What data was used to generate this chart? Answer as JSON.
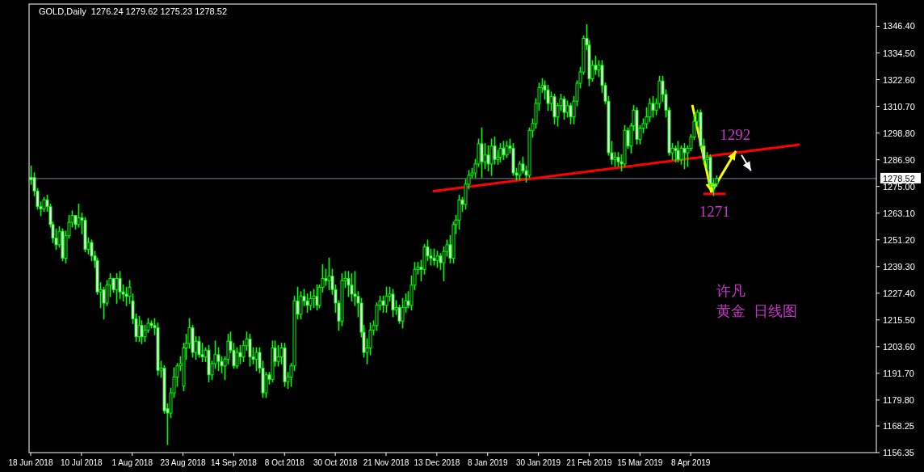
{
  "chart_data": {
    "type": "candlestick",
    "title": "GOLD,Daily  1276.24 1279.62 1275.23 1278.52",
    "categories": [
      "18 Jun 2018",
      null,
      null,
      null,
      null,
      null,
      null,
      null,
      null,
      null,
      null,
      null,
      null,
      null,
      null,
      null,
      "10 Jul 2018",
      null,
      null,
      null,
      null,
      null,
      null,
      null,
      null,
      null,
      null,
      null,
      null,
      null,
      null,
      null,
      "1 Aug 2018",
      null,
      null,
      null,
      null,
      null,
      null,
      null,
      null,
      null,
      null,
      null,
      null,
      null,
      null,
      null,
      "23 Aug 2018",
      null,
      null,
      null,
      null,
      null,
      null,
      null,
      null,
      null,
      null,
      null,
      null,
      null,
      null,
      null,
      "14 Sep 2018",
      null,
      null,
      null,
      null,
      null,
      null,
      null,
      null,
      null,
      null,
      null,
      null,
      null,
      null,
      null,
      "8 Oct 2018",
      null,
      null,
      null,
      null,
      null,
      null,
      null,
      null,
      null,
      null,
      null,
      null,
      null,
      null,
      null,
      "30 Oct 2018",
      null,
      null,
      null,
      null,
      null,
      null,
      null,
      null,
      null,
      null,
      null,
      null,
      null,
      null,
      null,
      "21 Nov 2018",
      null,
      null,
      null,
      null,
      null,
      null,
      null,
      null,
      null,
      null,
      null,
      null,
      null,
      null,
      null,
      "13 Dec 2018",
      null,
      null,
      null,
      null,
      null,
      null,
      null,
      null,
      null,
      null,
      null,
      null,
      null,
      null,
      null,
      "8 Jan 2019",
      null,
      null,
      null,
      null,
      null,
      null,
      null,
      null,
      null,
      null,
      null,
      null,
      null,
      null,
      null,
      "30 Jan 2019",
      null,
      null,
      null,
      null,
      null,
      null,
      null,
      null,
      null,
      null,
      null,
      null,
      null,
      null,
      null,
      "21 Feb 2019",
      null,
      null,
      null,
      null,
      null,
      null,
      null,
      null,
      null,
      null,
      null,
      null,
      null,
      null,
      null,
      "15 Mar 2019",
      null,
      null,
      null,
      null,
      null,
      null,
      null,
      null,
      null,
      null,
      null,
      null,
      null,
      null,
      null,
      "8 Apr 2019",
      null,
      null,
      null,
      null,
      null,
      null,
      null,
      null,
      null,
      null,
      null,
      null,
      null,
      null,
      null,
      null,
      null,
      null,
      null,
      null,
      null,
      null,
      null,
      null,
      null,
      null,
      null,
      null,
      null,
      null,
      null,
      null,
      null,
      null,
      null,
      null,
      null,
      null,
      null,
      null,
      null,
      null,
      null,
      null,
      null,
      null,
      null,
      null,
      null,
      null,
      null,
      null,
      null,
      null,
      null,
      null,
      null,
      null
    ],
    "ylim": [
      1156.35,
      1356.3
    ],
    "yticks": [
      {
        "value": 1346.4,
        "label": "1346.40"
      },
      {
        "value": 1334.5,
        "label": "1334.50"
      },
      {
        "value": 1322.6,
        "label": "1322.60"
      },
      {
        "value": 1310.7,
        "label": "1310.70"
      },
      {
        "value": 1298.8,
        "label": "1298.80"
      },
      {
        "value": 1286.9,
        "label": "1286.90"
      },
      {
        "value": 1275,
        "label": "1275.00"
      },
      {
        "value": 1263.1,
        "label": "1263.10"
      },
      {
        "value": 1251.2,
        "label": "1251.20"
      },
      {
        "value": 1239.3,
        "label": "1239.30"
      },
      {
        "value": 1227.4,
        "label": "1227.40"
      },
      {
        "value": 1215.5,
        "label": "1215.50"
      },
      {
        "value": 1203.6,
        "label": "1203.60"
      },
      {
        "value": 1191.7,
        "label": "1191.70"
      },
      {
        "value": 1179.8,
        "label": "1179.80"
      },
      {
        "value": 1168.25,
        "label": "1168.25"
      },
      {
        "value": 1156.35,
        "label": "1156.35"
      }
    ],
    "ref_lines": [
      {
        "axis": "y",
        "value": 1278.52,
        "label": "1278.52",
        "color": "#778899"
      }
    ],
    "annotations": [
      {
        "text": "1292",
        "y": 1292
      },
      {
        "text": "1271",
        "y": 1271
      },
      "许凡",
      "黄金  日线图"
    ],
    "series": [
      {
        "type": "line",
        "color": "#ff0000",
        "values": [
          null,
          null,
          null,
          null,
          null,
          null,
          null,
          null,
          null,
          null,
          null,
          null,
          null,
          null,
          null,
          null,
          null,
          null,
          null,
          null,
          null,
          null,
          null,
          null,
          null,
          null,
          null,
          null,
          null,
          null,
          null,
          null,
          null,
          null,
          null,
          null,
          null,
          null,
          null,
          null,
          null,
          null,
          null,
          null,
          null,
          null,
          null,
          null,
          null,
          null,
          null,
          null,
          null,
          null,
          null,
          null,
          null,
          null,
          null,
          null,
          null,
          null,
          null,
          null,
          null,
          null,
          null,
          null,
          null,
          null,
          null,
          null,
          null,
          null,
          null,
          null,
          null,
          null,
          null,
          null,
          null,
          null,
          null,
          null,
          null,
          null,
          null,
          null,
          null,
          null,
          null,
          null,
          null,
          null,
          null,
          null,
          null,
          null,
          null,
          null,
          null,
          null,
          null,
          null,
          null,
          null,
          null,
          null,
          null,
          null,
          null,
          null,
          null,
          null,
          null,
          null,
          null,
          null,
          null,
          null,
          null,
          null,
          null,
          null,
          null,
          null,
          null,
          1272.9,
          1273.1,
          1273.3,
          1273.4,
          1273.6,
          1273.8,
          1274.0,
          1274.2,
          1274.3,
          1274.5,
          1274.7,
          1274.9,
          1275.1,
          1275.2,
          1275.4,
          1275.6,
          1275.8,
          1276.0,
          1276.1,
          1276.3,
          1276.5,
          1276.7,
          1276.9,
          1277.0,
          1277.2,
          1277.4,
          1277.6,
          1277.8,
          1277.9,
          1278.1,
          1278.3,
          1278.5,
          1278.7,
          1278.8,
          1279.0,
          1279.2,
          1279.4,
          1279.6,
          1279.7,
          1279.9,
          1280.1,
          1280.3,
          1280.5,
          1280.6,
          1280.8,
          1281.0,
          1281.2,
          1281.4,
          1281.5,
          1281.7,
          1281.9,
          1282.1,
          1282.3,
          1282.4,
          1282.6,
          1282.8,
          1283.0,
          1283.2,
          1283.3,
          1283.5,
          1283.7,
          1283.9,
          1284.1,
          1284.2,
          1284.4,
          1284.6,
          1284.8,
          1285.0,
          1285.1,
          1285.3,
          1285.5,
          1285.7,
          1285.9,
          1286.0,
          1286.2,
          1286.4,
          1286.6,
          1286.8,
          1286.9,
          1287.1,
          1287.3,
          1287.5,
          1287.7,
          1287.8,
          1288.0,
          1288.2,
          1288.4,
          1288.6,
          1288.7,
          1288.9,
          1289.1,
          1289.3,
          1289.5,
          1289.6,
          1289.8,
          1290.0,
          1290.2,
          1290.4,
          1290.5,
          1290.7,
          1290.9,
          1291.1,
          1291.3,
          1291.4,
          1291.6,
          1291.8,
          1292.0,
          1292.2,
          1292.3,
          1292.5,
          1292.7,
          1292.9,
          1293.1,
          1293.2,
          1293.4,
          1293.6,
          null,
          null,
          null,
          null,
          null,
          null,
          null,
          null,
          null,
          null,
          null,
          null,
          null,
          null,
          null,
          null,
          null,
          null,
          null,
          null,
          null,
          null,
          null,
          null
        ]
      },
      {
        "color": "#00ff00",
        "ohlc": [
          [
            1279,
            1284,
            1276,
            1278
          ],
          [
            1279,
            1281,
            1271,
            1273
          ],
          [
            1273,
            1274,
            1265,
            1266
          ],
          [
            1266,
            1268,
            1262,
            1265
          ],
          [
            1265,
            1270,
            1264,
            1269
          ],
          [
            1269,
            1271,
            1264,
            1266
          ],
          [
            1266,
            1267,
            1257,
            1258
          ],
          [
            1258,
            1259,
            1250,
            1252
          ],
          [
            1252,
            1256,
            1247,
            1249
          ],
          [
            1249,
            1257,
            1248,
            1255
          ],
          [
            1255,
            1256,
            1242,
            1243
          ],
          [
            1243,
            1255,
            1241,
            1253
          ],
          [
            1253,
            1262,
            1252,
            1259
          ],
          [
            1259,
            1264,
            1257,
            1262
          ],
          [
            1262,
            1262,
            1256,
            1258
          ],
          [
            1258,
            1267,
            1257,
            1261
          ],
          [
            1261,
            1263,
            1254,
            1260
          ],
          [
            1260,
            1261,
            1246,
            1247
          ],
          [
            1247,
            1252,
            1245,
            1250
          ],
          [
            1250,
            1251,
            1242,
            1244
          ],
          [
            1244,
            1246,
            1239,
            1242
          ],
          [
            1242,
            1243,
            1227,
            1228
          ],
          [
            1228,
            1232,
            1221,
            1229
          ],
          [
            1229,
            1230,
            1216,
            1223
          ],
          [
            1223,
            1233,
            1222,
            1231
          ],
          [
            1231,
            1236,
            1226,
            1234
          ],
          [
            1234,
            1234,
            1228,
            1229
          ],
          [
            1229,
            1236,
            1223,
            1234
          ],
          [
            1234,
            1237,
            1225,
            1228
          ],
          [
            1228,
            1231,
            1224,
            1227
          ],
          [
            1227,
            1230,
            1222,
            1226
          ],
          [
            1226,
            1233,
            1223,
            1230
          ],
          [
            1224,
            1227,
            1214,
            1216
          ],
          [
            1216,
            1218,
            1206,
            1208
          ],
          [
            1208,
            1217,
            1206,
            1213
          ],
          [
            1213,
            1215,
            1205,
            1208
          ],
          [
            1208,
            1213,
            1206,
            1211
          ],
          [
            1211,
            1216,
            1210,
            1214
          ],
          [
            1214,
            1215,
            1212,
            1213
          ],
          [
            1213,
            1216,
            1209,
            1212
          ],
          [
            1212,
            1214,
            1191,
            1193
          ],
          [
            1193,
            1197,
            1190,
            1194
          ],
          [
            1194,
            1195,
            1174,
            1175
          ],
          [
            1176,
            1178,
            1160,
            1174
          ],
          [
            1174,
            1185,
            1172,
            1183
          ],
          [
            1183,
            1194,
            1181,
            1190
          ],
          [
            1190,
            1196,
            1186,
            1195
          ],
          [
            1195,
            1199,
            1193,
            1196
          ],
          [
            1186,
            1205,
            1184,
            1203
          ],
          [
            1203,
            1209,
            1198,
            1205
          ],
          [
            1205,
            1216,
            1203,
            1212
          ],
          [
            1212,
            1213,
            1199,
            1201
          ],
          [
            1201,
            1208,
            1198,
            1206
          ],
          [
            1206,
            1208,
            1199,
            1200
          ],
          [
            1200,
            1205,
            1197,
            1199
          ],
          [
            1199,
            1203,
            1197,
            1202
          ],
          [
            1202,
            1204,
            1188,
            1191
          ],
          [
            1191,
            1197,
            1189,
            1196
          ],
          [
            1196,
            1206,
            1194,
            1200
          ],
          [
            1200,
            1203,
            1193,
            1197
          ],
          [
            1197,
            1199,
            1192,
            1195
          ],
          [
            1195,
            1199,
            1189,
            1198
          ],
          [
            1198,
            1209,
            1196,
            1206
          ],
          [
            1206,
            1210,
            1201,
            1202
          ],
          [
            1202,
            1205,
            1194,
            1195
          ],
          [
            1195,
            1203,
            1194,
            1201
          ],
          [
            1201,
            1204,
            1196,
            1199
          ],
          [
            1199,
            1206,
            1197,
            1204
          ],
          [
            1204,
            1210,
            1202,
            1207
          ],
          [
            1207,
            1209,
            1195,
            1199
          ],
          [
            1199,
            1203,
            1196,
            1198
          ],
          [
            1198,
            1203,
            1193,
            1201
          ],
          [
            1201,
            1203,
            1192,
            1194
          ],
          [
            1194,
            1197,
            1181,
            1183
          ],
          [
            1183,
            1192,
            1181,
            1191
          ],
          [
            1191,
            1192,
            1187,
            1189
          ],
          [
            1189,
            1206,
            1188,
            1203
          ],
          [
            1203,
            1206,
            1195,
            1197
          ],
          [
            1197,
            1204,
            1195,
            1199
          ],
          [
            1199,
            1205,
            1196,
            1203
          ],
          [
            1203,
            1205,
            1186,
            1188
          ],
          [
            1188,
            1192,
            1185,
            1190
          ],
          [
            1190,
            1196,
            1186,
            1195
          ],
          [
            1195,
            1226,
            1193,
            1224
          ],
          [
            1224,
            1230,
            1216,
            1218
          ],
          [
            1218,
            1228,
            1216,
            1226
          ],
          [
            1226,
            1229,
            1222,
            1224
          ],
          [
            1224,
            1227,
            1219,
            1222
          ],
          [
            1222,
            1228,
            1220,
            1225
          ],
          [
            1225,
            1229,
            1221,
            1226
          ],
          [
            1226,
            1231,
            1220,
            1222
          ],
          [
            1222,
            1231,
            1221,
            1230
          ],
          [
            1230,
            1240,
            1228,
            1234
          ],
          [
            1234,
            1238,
            1231,
            1233
          ],
          [
            1233,
            1243,
            1229,
            1235
          ],
          [
            1235,
            1238,
            1227,
            1229
          ],
          [
            1229,
            1231,
            1219,
            1223
          ],
          [
            1223,
            1224,
            1211,
            1215
          ],
          [
            1215,
            1236,
            1213,
            1233
          ],
          [
            1233,
            1237,
            1230,
            1234
          ],
          [
            1234,
            1237,
            1226,
            1231
          ],
          [
            1231,
            1236,
            1224,
            1227
          ],
          [
            1227,
            1237,
            1222,
            1226
          ],
          [
            1226,
            1228,
            1217,
            1223
          ],
          [
            1223,
            1225,
            1208,
            1210
          ],
          [
            1210,
            1213,
            1199,
            1201
          ],
          [
            1201,
            1207,
            1196,
            1203
          ],
          [
            1203,
            1214,
            1200,
            1211
          ],
          [
            1211,
            1215,
            1209,
            1213
          ],
          [
            1213,
            1223,
            1211,
            1222
          ],
          [
            1222,
            1226,
            1220,
            1224
          ],
          [
            1224,
            1226,
            1219,
            1222
          ],
          [
            1222,
            1230,
            1219,
            1226
          ],
          [
            1226,
            1230,
            1224,
            1227
          ],
          [
            1227,
            1229,
            1217,
            1220
          ],
          [
            1220,
            1224,
            1218,
            1221
          ],
          [
            1221,
            1222,
            1214,
            1215
          ],
          [
            1215,
            1225,
            1212,
            1221
          ],
          [
            1221,
            1227,
            1219,
            1224
          ],
          [
            1224,
            1228,
            1221,
            1222
          ],
          [
            1222,
            1235,
            1220,
            1231
          ],
          [
            1231,
            1241,
            1229,
            1238
          ],
          [
            1238,
            1241,
            1236,
            1239
          ],
          [
            1239,
            1242,
            1233,
            1238
          ],
          [
            1238,
            1249,
            1236,
            1248
          ],
          [
            1248,
            1251,
            1242,
            1244
          ],
          [
            1244,
            1247,
            1240,
            1243
          ],
          [
            1243,
            1247,
            1240,
            1242
          ],
          [
            1242,
            1246,
            1239,
            1244
          ],
          [
            1244,
            1245,
            1238,
            1241
          ],
          [
            1241,
            1248,
            1233,
            1246
          ],
          [
            1246,
            1251,
            1244,
            1249
          ],
          [
            1249,
            1253,
            1241,
            1243
          ],
          [
            1243,
            1259,
            1241,
            1258
          ],
          [
            1258,
            1262,
            1254,
            1260
          ],
          [
            1260,
            1271,
            1256,
            1269
          ],
          [
            1269,
            1270,
            1264,
            1267
          ],
          [
            1267,
            1278,
            1265,
            1276
          ],
          [
            1276,
            1282,
            1274,
            1280
          ],
          [
            1280,
            1283,
            1279,
            1281
          ],
          [
            1281,
            1287,
            1279,
            1285
          ],
          [
            1285,
            1296,
            1284,
            1294
          ],
          [
            1294,
            1301,
            1279,
            1286
          ],
          [
            1286,
            1294,
            1283,
            1289
          ],
          [
            1289,
            1293,
            1282,
            1285
          ],
          [
            1285,
            1296,
            1280,
            1293
          ],
          [
            1293,
            1297,
            1285,
            1287
          ],
          [
            1287,
            1291,
            1285,
            1288
          ],
          [
            1288,
            1294,
            1286,
            1292
          ],
          [
            1292,
            1295,
            1287,
            1289
          ],
          [
            1289,
            1295,
            1288,
            1293
          ],
          [
            1293,
            1296,
            1290,
            1292
          ],
          [
            1292,
            1294,
            1280,
            1281
          ],
          [
            1281,
            1283,
            1278,
            1280
          ],
          [
            1280,
            1286,
            1278,
            1285
          ],
          [
            1285,
            1288,
            1281,
            1282
          ],
          [
            1282,
            1284,
            1277,
            1280
          ],
          [
            1280,
            1301,
            1279,
            1300
          ],
          [
            1300,
            1305,
            1297,
            1303
          ],
          [
            1303,
            1314,
            1301,
            1312
          ],
          [
            1312,
            1321,
            1309,
            1319
          ],
          [
            1319,
            1323,
            1317,
            1320
          ],
          [
            1320,
            1322,
            1314,
            1318
          ],
          [
            1318,
            1320,
            1309,
            1312
          ],
          [
            1312,
            1317,
            1309,
            1315
          ],
          [
            1315,
            1316,
            1303,
            1306
          ],
          [
            1306,
            1312,
            1302,
            1311
          ],
          [
            1311,
            1316,
            1309,
            1314
          ],
          [
            1314,
            1315,
            1305,
            1308
          ],
          [
            1308,
            1313,
            1306,
            1311
          ],
          [
            1311,
            1312,
            1303,
            1306
          ],
          [
            1306,
            1315,
            1303,
            1313
          ],
          [
            1313,
            1322,
            1311,
            1321
          ],
          [
            1321,
            1328,
            1319,
            1326
          ],
          [
            1326,
            1342,
            1325,
            1341
          ],
          [
            1341,
            1347,
            1336,
            1338
          ],
          [
            1338,
            1340,
            1320,
            1323
          ],
          [
            1323,
            1331,
            1322,
            1329
          ],
          [
            1329,
            1333,
            1325,
            1327
          ],
          [
            1327,
            1331,
            1324,
            1329
          ],
          [
            1329,
            1331,
            1317,
            1320
          ],
          [
            1320,
            1321,
            1312,
            1313
          ],
          [
            1313,
            1315,
            1289,
            1290
          ],
          [
            1290,
            1295,
            1285,
            1287
          ],
          [
            1287,
            1290,
            1284,
            1288
          ],
          [
            1288,
            1290,
            1284,
            1286
          ],
          [
            1286,
            1289,
            1282,
            1285
          ],
          [
            1285,
            1302,
            1284,
            1300
          ],
          [
            1300,
            1301,
            1292,
            1293
          ],
          [
            1293,
            1303,
            1290,
            1302
          ],
          [
            1302,
            1311,
            1300,
            1309
          ],
          [
            1309,
            1310,
            1294,
            1296
          ],
          [
            1296,
            1302,
            1294,
            1301
          ],
          [
            1301,
            1305,
            1299,
            1303
          ],
          [
            1303,
            1310,
            1301,
            1306
          ],
          [
            1306,
            1314,
            1304,
            1312
          ],
          [
            1312,
            1315,
            1306,
            1309
          ],
          [
            1309,
            1314,
            1307,
            1312
          ],
          [
            1312,
            1324,
            1310,
            1322
          ],
          [
            1322,
            1324,
            1313,
            1316
          ],
          [
            1316,
            1318,
            1306,
            1309
          ],
          [
            1309,
            1310,
            1289,
            1290
          ],
          [
            1290,
            1294,
            1287,
            1292
          ],
          [
            1292,
            1293,
            1286,
            1291
          ],
          [
            1291,
            1295,
            1286,
            1287
          ],
          [
            1287,
            1293,
            1285,
            1292
          ],
          [
            1292,
            1294,
            1283,
            1290
          ],
          [
            1290,
            1293,
            1284,
            1292
          ],
          [
            1292,
            1298,
            1291,
            1297
          ],
          [
            1297,
            1307,
            1296,
            1304
          ],
          [
            1304,
            1309,
            1302,
            1308
          ],
          [
            1308,
            1309,
            1292,
            1293
          ],
          [
            1293,
            1296,
            1285,
            1287
          ],
          [
            1287,
            1290,
            1283,
            1288
          ],
          [
            1288,
            1289,
            1275,
            1276
          ],
          [
            1276,
            1278,
            1271,
            1275
          ],
          [
            1276.24,
            1279.62,
            1275.23,
            1278.52
          ],
          null,
          null,
          null,
          null,
          null,
          null,
          null,
          null,
          null,
          null,
          null,
          null,
          null,
          null,
          null,
          null,
          null,
          null,
          null,
          null,
          null,
          null,
          null,
          null,
          null,
          null,
          null,
          null,
          null,
          null,
          null,
          null,
          null,
          null,
          null,
          null,
          null,
          null,
          null,
          null,
          null,
          null,
          null,
          null,
          null,
          null,
          null,
          null,
          null,
          null
        ]
      }
    ]
  }
}
